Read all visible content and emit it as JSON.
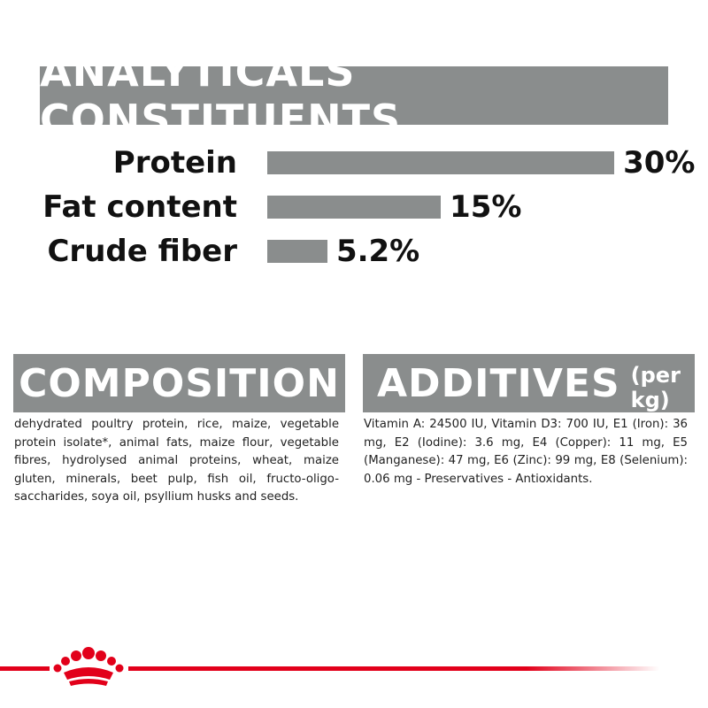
{
  "header": {
    "title": "ANALYTICALS CONSTITUENTS"
  },
  "analyticals": [
    {
      "label": "Protein",
      "value": 30,
      "value_label": "30%"
    },
    {
      "label": "Fat content",
      "value": 15,
      "value_label": "15%"
    },
    {
      "label": "Crude fiber",
      "value": 5.2,
      "value_label": "5.2%"
    }
  ],
  "composition": {
    "title": "COMPOSITION",
    "text": "dehydrated poultry protein, rice, maize, vegetable protein isolate*, animal fats, maize flour, vegetable fibres, hydrolysed animal proteins, wheat, maize gluten, minerals, beet pulp, fish oil, fructo-oligo-saccharides, soya oil, psyllium husks and seeds."
  },
  "additives": {
    "title": "ADDITIVES",
    "unit": "(per kg)",
    "text": "Vitamin A: 24500 IU, Vitamin D3: 700 IU, E1 (Iron): 36 mg, E2 (Iodine): 3.6 mg, E4 (Copper): 11 mg, E5 (Manganese): 47 mg, E6 (Zinc): 99 mg, E8 (Selenium): 0.06 mg - Preservatives - Antioxidants."
  }
}
